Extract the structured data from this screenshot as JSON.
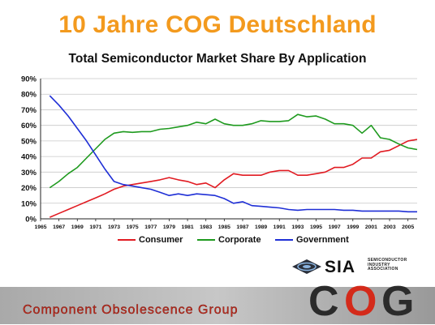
{
  "slide": {
    "title": "10 Jahre COG Deutschland",
    "footer_text": "Component Obsolescence Group",
    "logo_sia": {
      "name": "SIA",
      "subtitle": "SEMICONDUCTOR INDUSTRY ASSOCIATION"
    },
    "logo_cog": {
      "letters": [
        "C",
        "O",
        "G"
      ]
    }
  },
  "colors": {
    "title": "#f39a1e",
    "consumer": "#e11b22",
    "corporate": "#1e9a1e",
    "government": "#1f2fd6",
    "footer_text": "#c22c1e"
  },
  "chart_data": {
    "type": "line",
    "title": "Total Semiconductor Market Share By Application",
    "xlabel": "",
    "ylabel": "",
    "xlim": [
      1965,
      2006
    ],
    "ylim": [
      0,
      90
    ],
    "y_ticks": [
      0,
      10,
      20,
      30,
      40,
      50,
      60,
      70,
      80,
      90
    ],
    "y_tick_labels": [
      "0%",
      "10%",
      "20%",
      "30%",
      "40%",
      "50%",
      "60%",
      "70%",
      "80%",
      "90%"
    ],
    "x_ticks": [
      1965,
      1967,
      1969,
      1971,
      1973,
      1975,
      1977,
      1979,
      1981,
      1983,
      1985,
      1987,
      1989,
      1991,
      1993,
      1995,
      1997,
      1999,
      2001,
      2003,
      2005
    ],
    "x_tick_labels": [
      "1965",
      "1967",
      "1969",
      "1971",
      "1973",
      "1975",
      "1977",
      "1979",
      "1981",
      "1983",
      "1985",
      "1987",
      "1989",
      "1991",
      "1993",
      "1995",
      "1997",
      "1999",
      "2001",
      "2003",
      "2005"
    ],
    "grid": true,
    "legend_position": "bottom",
    "x": [
      1966,
      1967,
      1968,
      1969,
      1970,
      1971,
      1972,
      1973,
      1974,
      1975,
      1976,
      1977,
      1978,
      1979,
      1980,
      1981,
      1982,
      1983,
      1984,
      1985,
      1986,
      1987,
      1988,
      1989,
      1990,
      1991,
      1992,
      1993,
      1994,
      1995,
      1996,
      1997,
      1998,
      1999,
      2000,
      2001,
      2002,
      2003,
      2004,
      2005,
      2006
    ],
    "series": [
      {
        "name": "Consumer",
        "values": [
          1,
          3.5,
          6,
          8.5,
          11,
          13.5,
          16,
          19,
          21,
          22,
          23,
          24,
          25,
          26.5,
          25,
          24,
          22,
          23,
          20,
          25,
          29,
          28,
          28,
          28,
          30,
          31,
          31,
          28,
          28,
          29,
          30,
          33,
          33,
          35,
          39,
          39,
          43,
          44,
          47,
          50,
          51
        ]
      },
      {
        "name": "Corporate",
        "values": [
          20,
          24,
          29,
          33,
          39,
          45,
          51,
          55,
          56,
          55.5,
          56,
          56,
          57.5,
          58,
          59,
          60,
          62,
          61,
          64,
          61,
          60,
          60,
          61,
          63,
          62.5,
          62.5,
          63,
          67,
          65.5,
          66,
          64,
          61,
          61,
          60,
          55,
          60,
          52,
          51,
          48,
          45.5,
          44.5
        ]
      },
      {
        "name": "Government",
        "values": [
          79,
          73,
          66,
          58,
          50,
          41,
          32,
          24,
          22,
          21,
          20,
          19,
          17,
          15,
          16,
          15,
          16,
          15.5,
          15,
          13,
          10,
          11,
          8.5,
          8,
          7.5,
          7,
          6,
          5.5,
          6,
          6,
          6,
          6,
          5.5,
          5.5,
          5,
          5,
          5,
          5,
          5,
          4.5,
          4.5
        ]
      }
    ]
  }
}
